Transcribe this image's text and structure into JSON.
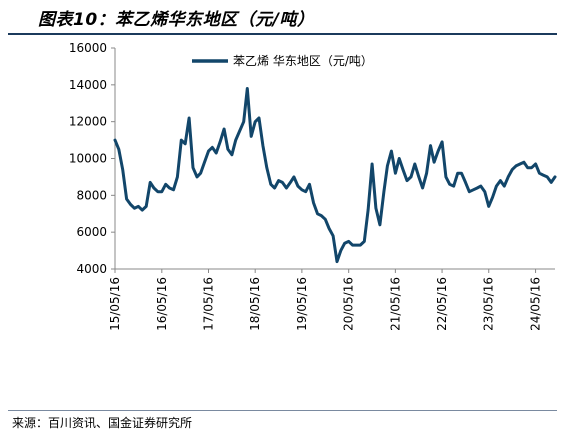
{
  "header": {
    "title": "图表10：苯乙烯华东地区（元/吨）"
  },
  "footer": {
    "source": "来源：百川资讯、国金证券研究所"
  },
  "chart_data": {
    "type": "line",
    "title": "",
    "xlabel": "",
    "ylabel": "",
    "ylim": [
      4000,
      16000
    ],
    "yticks": [
      4000,
      6000,
      8000,
      10000,
      12000,
      14000,
      16000
    ],
    "xticks": [
      "15/05/16",
      "16/05/16",
      "17/05/16",
      "18/05/16",
      "19/05/16",
      "20/05/16",
      "21/05/16",
      "22/05/16",
      "23/05/16",
      "24/05/16"
    ],
    "legend_position": "top-center",
    "grid": false,
    "series": [
      {
        "name": "苯乙烯 华东地区（元/吨）",
        "color": "#12466a",
        "x": [
          "2015-05-16",
          "2015-06-15",
          "2015-07-15",
          "2015-08-15",
          "2015-09-15",
          "2015-10-15",
          "2015-11-15",
          "2015-12-15",
          "2016-01-15",
          "2016-02-15",
          "2016-03-15",
          "2016-04-15",
          "2016-05-16",
          "2016-06-15",
          "2016-07-15",
          "2016-08-15",
          "2016-09-15",
          "2016-10-15",
          "2016-11-15",
          "2016-12-15",
          "2017-01-15",
          "2017-02-15",
          "2017-03-15",
          "2017-04-15",
          "2017-05-16",
          "2017-06-15",
          "2017-07-15",
          "2017-08-15",
          "2017-09-15",
          "2017-10-15",
          "2017-11-15",
          "2017-12-15",
          "2018-01-15",
          "2018-02-15",
          "2018-03-15",
          "2018-04-15",
          "2018-05-16",
          "2018-06-15",
          "2018-07-15",
          "2018-08-15",
          "2018-09-15",
          "2018-10-15",
          "2018-11-15",
          "2018-12-15",
          "2019-01-15",
          "2019-02-15",
          "2019-03-15",
          "2019-04-15",
          "2019-05-16",
          "2019-06-15",
          "2019-07-15",
          "2019-08-15",
          "2019-09-15",
          "2019-10-15",
          "2019-11-15",
          "2019-12-15",
          "2020-01-15",
          "2020-02-15",
          "2020-03-15",
          "2020-04-15",
          "2020-05-16",
          "2020-06-15",
          "2020-07-15",
          "2020-08-15",
          "2020-09-15",
          "2020-10-15",
          "2020-11-15",
          "2020-12-15",
          "2021-01-15",
          "2021-02-15",
          "2021-03-15",
          "2021-04-15",
          "2021-05-16",
          "2021-06-15",
          "2021-07-15",
          "2021-08-15",
          "2021-09-15",
          "2021-10-15",
          "2021-11-15",
          "2021-12-15",
          "2022-01-15",
          "2022-02-15",
          "2022-03-15",
          "2022-04-15",
          "2022-05-16",
          "2022-06-15",
          "2022-07-15",
          "2022-08-15",
          "2022-09-15",
          "2022-10-15",
          "2022-11-15",
          "2022-12-15",
          "2023-01-15",
          "2023-02-15",
          "2023-03-15",
          "2023-04-15",
          "2023-05-16",
          "2023-06-15",
          "2023-07-15",
          "2023-08-15",
          "2023-09-15",
          "2023-10-15",
          "2023-11-15",
          "2023-12-15",
          "2024-01-15",
          "2024-02-15",
          "2024-03-15",
          "2024-04-15",
          "2024-05-16",
          "2024-06-15",
          "2024-07-15",
          "2024-08-15",
          "2024-09-15",
          "2024-10-15"
        ],
        "values": [
          11000,
          10500,
          9400,
          7800,
          7500,
          7300,
          7400,
          7200,
          7400,
          8700,
          8400,
          8200,
          8200,
          8600,
          8400,
          8300,
          9000,
          11000,
          10800,
          12200,
          9500,
          9000,
          9200,
          9800,
          10400,
          10600,
          10300,
          10900,
          11600,
          10500,
          10200,
          11000,
          11500,
          12000,
          13800,
          11200,
          12000,
          12200,
          10700,
          9500,
          8600,
          8400,
          8800,
          8700,
          8400,
          8700,
          9000,
          8500,
          8300,
          8200,
          8600,
          7600,
          7000,
          6900,
          6700,
          6200,
          5800,
          4400,
          5000,
          5400,
          5500,
          5300,
          5300,
          5300,
          5500,
          7200,
          9700,
          7300,
          6400,
          8200,
          9600,
          10400,
          9200,
          10000,
          9400,
          8800,
          9000,
          9700,
          9000,
          8400,
          9200,
          10700,
          9800,
          10400,
          10900,
          9000,
          8600,
          8500,
          9200,
          9200,
          8700,
          8200,
          8300,
          8400,
          8500,
          8200,
          7400,
          7900,
          8500,
          8800,
          8500,
          9000,
          9400,
          9600,
          9700,
          9800,
          9500,
          9500,
          9700,
          9200,
          9100,
          9000,
          8700,
          9000
        ]
      }
    ]
  }
}
